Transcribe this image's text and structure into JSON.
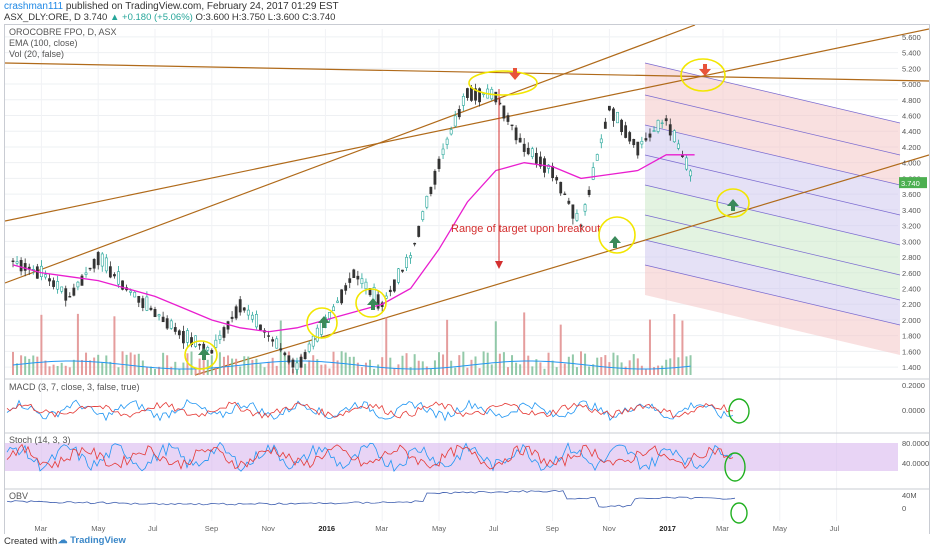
{
  "header": {
    "author": "crashman111",
    "published_text": "published on TradingView.com, February 24, 2017 01:29 EST",
    "symbol": "ASX_DLY:ORE, D",
    "price": "3.740",
    "change": "▲ +0.180 (+5.06%)",
    "ohlc": "O:3.600 H:3.750 L:3.600 C:3.740"
  },
  "legend": {
    "title": "OROCOBRE FPO, D, ASX",
    "ema": "EMA (100, close)",
    "vol": "Vol (20, false)"
  },
  "footer": {
    "created_with": "Created with",
    "brand": "TradingView"
  },
  "annotation": "Range of target upon breakout",
  "colors": {
    "price": "#222222",
    "ema": "#e91ecf",
    "volume_ma": "#2196f3",
    "channel": "#b06a1a",
    "arrow": "#d32f2f",
    "highlight": "#f2e600",
    "up_arrow": "#3a8a5a",
    "down_arrow": "#e8533a",
    "stoch_band": "#d9b8ef"
  },
  "chart_data": [
    {
      "type": "line",
      "title": "OROCOBRE FPO, D, ASX",
      "y_ticks": [
        "5.600",
        "5.400",
        "5.200",
        "5.000",
        "4.800",
        "4.600",
        "4.400",
        "4.200",
        "4.000",
        "3.800",
        "3.600",
        "3.400",
        "3.200",
        "3.000",
        "2.800",
        "2.600",
        "2.400",
        "2.200",
        "2.000",
        "1.800",
        "1.600",
        "1.400"
      ],
      "x_ticks": [
        "Mar",
        "May",
        "Jul",
        "Sep",
        "Nov",
        "2016",
        "Mar",
        "May",
        "Jul",
        "Sep",
        "Nov",
        "2017",
        "Mar",
        "May",
        "Jul"
      ],
      "last_price_label": "3.740",
      "ylim": [
        1.3,
        5.7
      ],
      "series": [
        {
          "name": "Price",
          "x": [
            "2015-02",
            "2015-03",
            "2015-04",
            "2015-05",
            "2015-06",
            "2015-07",
            "2015-08",
            "2015-09",
            "2015-10",
            "2015-11",
            "2015-12",
            "2016-01",
            "2016-02",
            "2016-03",
            "2016-04",
            "2016-05",
            "2016-06",
            "2016-07",
            "2016-08",
            "2016-09",
            "2016-10",
            "2016-11",
            "2016-12",
            "2017-01",
            "2017-02"
          ],
          "values": [
            2.75,
            2.6,
            2.3,
            2.8,
            2.4,
            2.1,
            1.8,
            1.6,
            2.2,
            1.8,
            1.4,
            1.95,
            2.6,
            2.2,
            2.8,
            4.0,
            4.9,
            4.85,
            4.2,
            3.9,
            3.2,
            4.7,
            4.2,
            4.55,
            3.74
          ]
        },
        {
          "name": "EMA (100, close)",
          "x": [
            "2015-02",
            "2015-03",
            "2015-04",
            "2015-05",
            "2015-06",
            "2015-07",
            "2015-08",
            "2015-09",
            "2015-10",
            "2015-11",
            "2015-12",
            "2016-01",
            "2016-02",
            "2016-03",
            "2016-04",
            "2016-05",
            "2016-06",
            "2016-07",
            "2016-08",
            "2016-09",
            "2016-10",
            "2016-11",
            "2016-12",
            "2017-01",
            "2017-02"
          ],
          "values": [
            2.7,
            2.6,
            2.55,
            2.5,
            2.4,
            2.3,
            2.15,
            2.0,
            1.9,
            1.85,
            1.9,
            2.0,
            2.1,
            2.2,
            2.4,
            2.9,
            3.5,
            3.9,
            4.0,
            3.95,
            3.8,
            3.85,
            3.9,
            4.1,
            4.1
          ]
        }
      ]
    },
    {
      "type": "line",
      "title": "MACD (3, 7, close, 3, false, true)",
      "y_ticks": [
        "0.2000",
        "0.0000"
      ]
    },
    {
      "type": "line",
      "title": "Stoch (14, 3, 3)",
      "y_ticks": [
        "80.0000",
        "40.0000"
      ]
    },
    {
      "type": "line",
      "title": "OBV",
      "y_ticks": [
        "40M",
        "0"
      ]
    }
  ]
}
